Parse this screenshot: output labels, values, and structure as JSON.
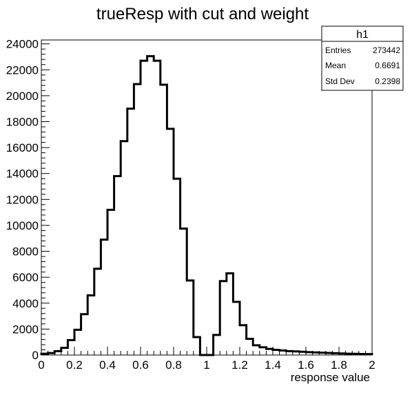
{
  "chart_data": {
    "type": "bar",
    "title": "trueResp with cut and weight",
    "xlabel": "response value",
    "ylabel": "",
    "xlim": [
      0,
      2
    ],
    "ylim": [
      0,
      24300
    ],
    "bin_width": 0.04,
    "x_ticks": [
      0,
      0.2,
      0.4,
      0.6,
      0.8,
      1,
      1.2,
      1.4,
      1.6,
      1.8,
      2
    ],
    "x_tick_labels": [
      "0",
      "0.2",
      "0.4",
      "0.6",
      "0.8",
      "1",
      "1.2",
      "1.4",
      "1.6",
      "1.8",
      "2"
    ],
    "y_ticks": [
      0,
      2000,
      4000,
      6000,
      8000,
      10000,
      12000,
      14000,
      16000,
      18000,
      20000,
      22000,
      24000
    ],
    "y_tick_labels": [
      "0",
      "2000",
      "4000",
      "6000",
      "8000",
      "10000",
      "12000",
      "14000",
      "16000",
      "18000",
      "20000",
      "22000",
      "24000"
    ],
    "grid": false,
    "series": [
      {
        "name": "h1",
        "values": [
          100,
          150,
          300,
          550,
          1150,
          1950,
          3150,
          4600,
          6650,
          8900,
          11200,
          13800,
          16500,
          19000,
          20900,
          22700,
          23050,
          22700,
          20850,
          17450,
          13600,
          9750,
          5750,
          1380,
          0,
          0,
          1550,
          5700,
          6300,
          4100,
          2300,
          1250,
          750,
          600,
          470,
          400,
          350,
          300,
          280,
          250,
          220,
          200,
          180,
          160,
          140,
          120,
          100,
          90,
          80,
          70
        ]
      }
    ],
    "stats_box": {
      "title": "h1",
      "position": "top-right",
      "rows": [
        {
          "label": "Entries",
          "value": "273442"
        },
        {
          "label": "Mean",
          "value": "0.6691"
        },
        {
          "label": "Std Dev",
          "value": "0.2398"
        }
      ]
    }
  }
}
